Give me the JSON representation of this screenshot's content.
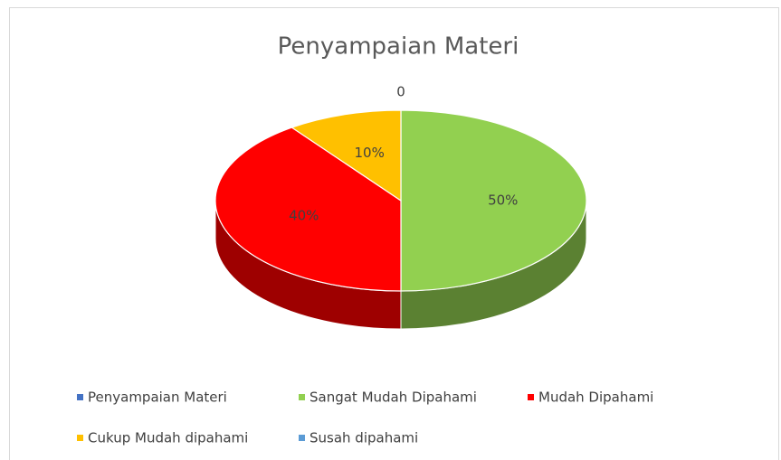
{
  "chart_data": {
    "type": "pie",
    "title": "Penyampaian Materi",
    "categories": [
      "Penyampaian Materi",
      "Sangat Mudah Dipahami",
      "Mudah Dipahami",
      "Cukup Mudah dipahami",
      "Susah dipahami"
    ],
    "values": [
      0,
      50,
      40,
      10,
      0
    ],
    "value_labels": [
      null,
      "50%",
      "40%",
      "10%",
      "0"
    ],
    "colors": [
      "#4472c4",
      "#92d050",
      "#ff0000",
      "#ffc000",
      "#5b9bd5"
    ],
    "legend": "bottom"
  }
}
